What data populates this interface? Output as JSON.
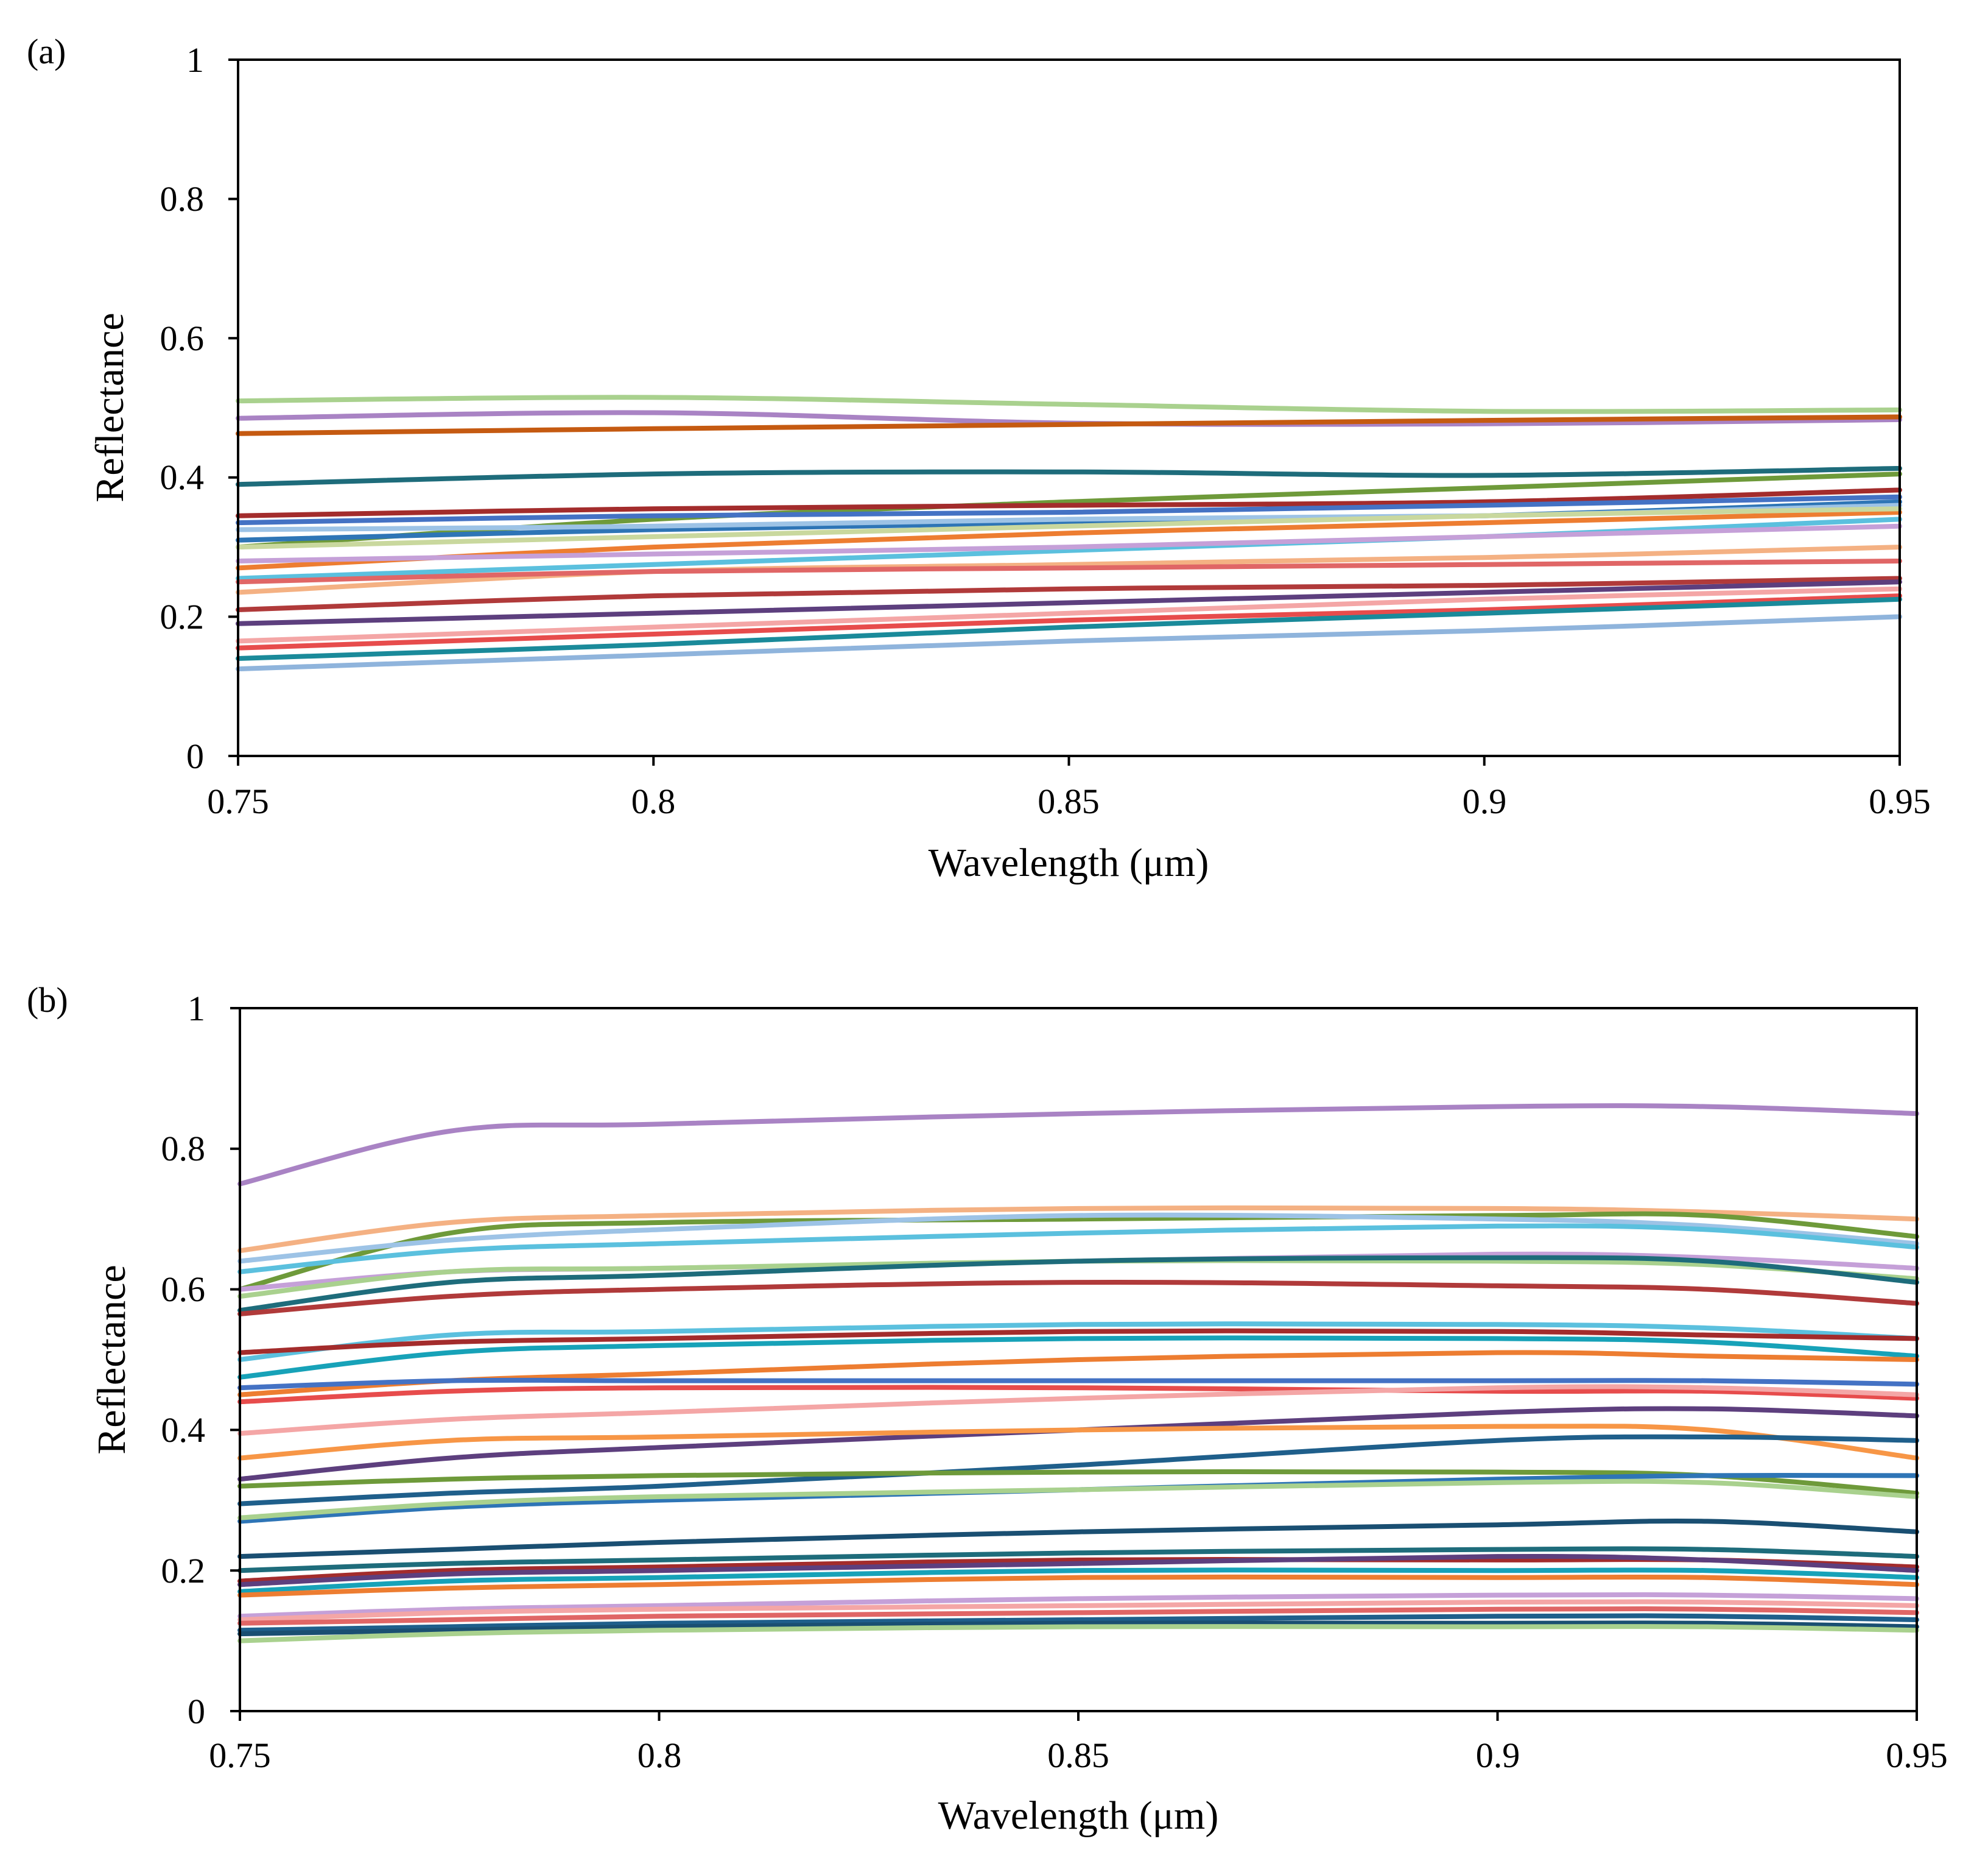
{
  "chart_data": [
    {
      "type": "line",
      "panel_label": "(a)",
      "xlabel": "Wavelength (μm)",
      "ylabel": "Reflectance",
      "xlim": [
        0.75,
        0.95
      ],
      "ylim": [
        0,
        1
      ],
      "x_ticks": [
        "0.75",
        "0.8",
        "0.85",
        "0.9",
        "0.95"
      ],
      "y_ticks": [
        "0",
        "0.2",
        "0.4",
        "0.6",
        "0.8",
        "1"
      ],
      "grid": false,
      "legend": "none",
      "x": [
        0.75,
        0.8,
        0.85,
        0.9,
        0.95
      ],
      "series": [
        {
          "color": "#a9d18e",
          "values": [
            0.51,
            0.515,
            0.505,
            0.495,
            0.497
          ]
        },
        {
          "color": "#a983c4",
          "values": [
            0.485,
            0.493,
            0.478,
            0.477,
            0.483
          ]
        },
        {
          "color": "#c55a11",
          "values": [
            0.463,
            0.47,
            0.476,
            0.482,
            0.487
          ]
        },
        {
          "color": "#1e6c7b",
          "values": [
            0.39,
            0.405,
            0.408,
            0.403,
            0.413
          ]
        },
        {
          "color": "#6e9a3a",
          "values": [
            0.3,
            0.34,
            0.365,
            0.385,
            0.405
          ]
        },
        {
          "color": "#a32c2c",
          "values": [
            0.345,
            0.355,
            0.36,
            0.365,
            0.382
          ]
        },
        {
          "color": "#4472c4",
          "values": [
            0.335,
            0.345,
            0.35,
            0.36,
            0.372
          ]
        },
        {
          "color": "#2e75b6",
          "values": [
            0.31,
            0.325,
            0.335,
            0.345,
            0.365
          ]
        },
        {
          "color": "#ed7d31",
          "values": [
            0.27,
            0.3,
            0.32,
            0.335,
            0.35
          ]
        },
        {
          "color": "#9dc3e6",
          "values": [
            0.325,
            0.33,
            0.34,
            0.345,
            0.36
          ]
        },
        {
          "color": "#c9d89e",
          "values": [
            0.3,
            0.315,
            0.33,
            0.345,
            0.355
          ]
        },
        {
          "color": "#5bc0de",
          "values": [
            0.255,
            0.275,
            0.295,
            0.315,
            0.34
          ]
        },
        {
          "color": "#c5a0d8",
          "values": [
            0.28,
            0.29,
            0.3,
            0.315,
            0.33
          ]
        },
        {
          "color": "#f4b183",
          "values": [
            0.235,
            0.265,
            0.275,
            0.285,
            0.3
          ]
        },
        {
          "color": "#e06666",
          "values": [
            0.25,
            0.265,
            0.27,
            0.275,
            0.28
          ]
        },
        {
          "color": "#b03a3a",
          "values": [
            0.21,
            0.23,
            0.24,
            0.245,
            0.255
          ]
        },
        {
          "color": "#5d3f7e",
          "values": [
            0.19,
            0.205,
            0.22,
            0.235,
            0.25
          ]
        },
        {
          "color": "#f4a6a6",
          "values": [
            0.165,
            0.185,
            0.205,
            0.225,
            0.24
          ]
        },
        {
          "color": "#e74c4c",
          "values": [
            0.155,
            0.175,
            0.195,
            0.21,
            0.23
          ]
        },
        {
          "color": "#1a8a9a",
          "values": [
            0.14,
            0.16,
            0.185,
            0.205,
            0.225
          ]
        },
        {
          "color": "#8fb4dc",
          "values": [
            0.125,
            0.145,
            0.165,
            0.18,
            0.2
          ]
        }
      ]
    },
    {
      "type": "line",
      "panel_label": "(b)",
      "xlabel": "Wavelength (μm)",
      "ylabel": "Reflectance",
      "xlim": [
        0.75,
        0.95
      ],
      "ylim": [
        0,
        1
      ],
      "x_ticks": [
        "0.75",
        "0.8",
        "0.85",
        "0.9",
        "0.95"
      ],
      "y_ticks": [
        "0",
        "0.2",
        "0.4",
        "0.6",
        "0.8",
        "1"
      ],
      "grid": false,
      "legend": "none",
      "x": [
        0.75,
        0.775,
        0.8,
        0.85,
        0.9,
        0.925,
        0.95
      ],
      "series": [
        {
          "color": "#a983c4",
          "values": [
            0.75,
            0.825,
            0.835,
            0.85,
            0.86,
            0.86,
            0.85
          ]
        },
        {
          "color": "#f4b183",
          "values": [
            0.655,
            0.695,
            0.705,
            0.715,
            0.715,
            0.71,
            0.7
          ]
        },
        {
          "color": "#6e9a3a",
          "values": [
            0.6,
            0.68,
            0.695,
            0.7,
            0.705,
            0.705,
            0.675
          ]
        },
        {
          "color": "#9dc3e6",
          "values": [
            0.64,
            0.67,
            0.685,
            0.705,
            0.7,
            0.69,
            0.665
          ]
        },
        {
          "color": "#5bc0de",
          "values": [
            0.625,
            0.655,
            0.665,
            0.68,
            0.69,
            0.685,
            0.66
          ]
        },
        {
          "color": "#c5a0d8",
          "values": [
            0.6,
            0.625,
            0.63,
            0.64,
            0.65,
            0.645,
            0.63
          ]
        },
        {
          "color": "#a9d18e",
          "values": [
            0.59,
            0.625,
            0.63,
            0.64,
            0.64,
            0.635,
            0.615
          ]
        },
        {
          "color": "#1e6c7b",
          "values": [
            0.57,
            0.61,
            0.62,
            0.64,
            0.645,
            0.64,
            0.61
          ]
        },
        {
          "color": "#b03a3a",
          "values": [
            0.565,
            0.59,
            0.6,
            0.61,
            0.605,
            0.6,
            0.58
          ]
        },
        {
          "color": "#5bc0de",
          "values": [
            0.5,
            0.535,
            0.54,
            0.55,
            0.55,
            0.545,
            0.53
          ]
        },
        {
          "color": "#a32c2c",
          "values": [
            0.51,
            0.525,
            0.53,
            0.54,
            0.54,
            0.535,
            0.53
          ]
        },
        {
          "color": "#17a2b8",
          "values": [
            0.475,
            0.51,
            0.52,
            0.53,
            0.53,
            0.525,
            0.505
          ]
        },
        {
          "color": "#ed7d31",
          "values": [
            0.45,
            0.47,
            0.48,
            0.5,
            0.51,
            0.505,
            0.5
          ]
        },
        {
          "color": "#4472c4",
          "values": [
            0.46,
            0.47,
            0.47,
            0.47,
            0.47,
            0.47,
            0.465
          ]
        },
        {
          "color": "#e74c4c",
          "values": [
            0.44,
            0.455,
            0.46,
            0.46,
            0.455,
            0.455,
            0.445
          ]
        },
        {
          "color": "#f4a6a6",
          "values": [
            0.395,
            0.415,
            0.425,
            0.445,
            0.46,
            0.46,
            0.45
          ]
        },
        {
          "color": "#5d3f7e",
          "values": [
            0.33,
            0.36,
            0.375,
            0.4,
            0.425,
            0.43,
            0.42
          ]
        },
        {
          "color": "#f79646",
          "values": [
            0.36,
            0.385,
            0.39,
            0.4,
            0.405,
            0.4,
            0.36
          ]
        },
        {
          "color": "#1f5f8b",
          "values": [
            0.295,
            0.31,
            0.32,
            0.35,
            0.385,
            0.39,
            0.385
          ]
        },
        {
          "color": "#6e9a3a",
          "values": [
            0.32,
            0.33,
            0.335,
            0.34,
            0.34,
            0.335,
            0.31
          ]
        },
        {
          "color": "#2e75b6",
          "values": [
            0.27,
            0.29,
            0.3,
            0.315,
            0.33,
            0.335,
            0.335
          ]
        },
        {
          "color": "#a9d18e",
          "values": [
            0.275,
            0.295,
            0.305,
            0.315,
            0.325,
            0.325,
            0.305
          ]
        },
        {
          "color": "#1a4f72",
          "values": [
            0.22,
            0.23,
            0.24,
            0.255,
            0.265,
            0.27,
            0.255
          ]
        },
        {
          "color": "#1e6c7b",
          "values": [
            0.2,
            0.21,
            0.215,
            0.225,
            0.23,
            0.23,
            0.22
          ]
        },
        {
          "color": "#a32c2c",
          "values": [
            0.185,
            0.2,
            0.205,
            0.215,
            0.215,
            0.215,
            0.205
          ]
        },
        {
          "color": "#5d3f7e",
          "values": [
            0.18,
            0.195,
            0.2,
            0.21,
            0.22,
            0.215,
            0.2
          ]
        },
        {
          "color": "#17a2b8",
          "values": [
            0.17,
            0.185,
            0.19,
            0.2,
            0.2,
            0.2,
            0.19
          ]
        },
        {
          "color": "#ed7d31",
          "values": [
            0.165,
            0.175,
            0.18,
            0.19,
            0.19,
            0.19,
            0.18
          ]
        },
        {
          "color": "#c5a0d8",
          "values": [
            0.135,
            0.145,
            0.15,
            0.16,
            0.165,
            0.165,
            0.16
          ]
        },
        {
          "color": "#f4a6a6",
          "values": [
            0.13,
            0.14,
            0.145,
            0.15,
            0.155,
            0.155,
            0.15
          ]
        },
        {
          "color": "#e06666",
          "values": [
            0.125,
            0.13,
            0.135,
            0.14,
            0.145,
            0.145,
            0.14
          ]
        },
        {
          "color": "#1f5f8b",
          "values": [
            0.115,
            0.12,
            0.125,
            0.13,
            0.135,
            0.135,
            0.13
          ]
        },
        {
          "color": "#1a4f72",
          "values": [
            0.11,
            0.115,
            0.12,
            0.125,
            0.125,
            0.125,
            0.12
          ]
        },
        {
          "color": "#a9d18e",
          "values": [
            0.1,
            0.11,
            0.115,
            0.12,
            0.12,
            0.12,
            0.115
          ]
        }
      ]
    }
  ]
}
